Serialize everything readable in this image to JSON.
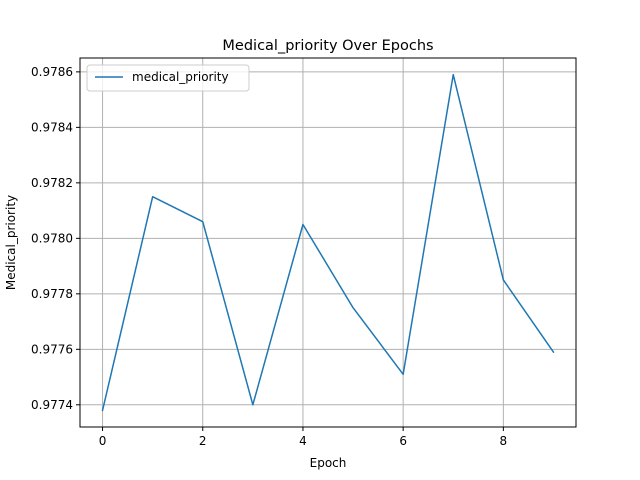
{
  "chart_data": {
    "type": "line",
    "title": "Medical_priority Over Epochs",
    "xlabel": "Epoch",
    "ylabel": "Medical_priority",
    "x": [
      0,
      1,
      2,
      3,
      4,
      5,
      6,
      7,
      8,
      9
    ],
    "series": [
      {
        "name": "medical_priority",
        "color": "#1f77b4",
        "values": [
          0.97738,
          0.97815,
          0.97806,
          0.9774,
          0.97805,
          0.97775,
          0.97751,
          0.97859,
          0.97785,
          0.97759
        ]
      }
    ],
    "xlim": [
      -0.45,
      9.45
    ],
    "ylim": [
      0.97732,
      0.97865
    ],
    "xticks": [
      0,
      2,
      4,
      6,
      8
    ],
    "xtick_labels": [
      "0",
      "2",
      "4",
      "6",
      "8"
    ],
    "yticks": [
      0.9774,
      0.9776,
      0.9778,
      0.978,
      0.9782,
      0.9784,
      0.9786
    ],
    "ytick_labels": [
      "0.9774",
      "0.9776",
      "0.9778",
      "0.9780",
      "0.9782",
      "0.9784",
      "0.9786"
    ],
    "grid": true,
    "legend_position": "top-left"
  }
}
